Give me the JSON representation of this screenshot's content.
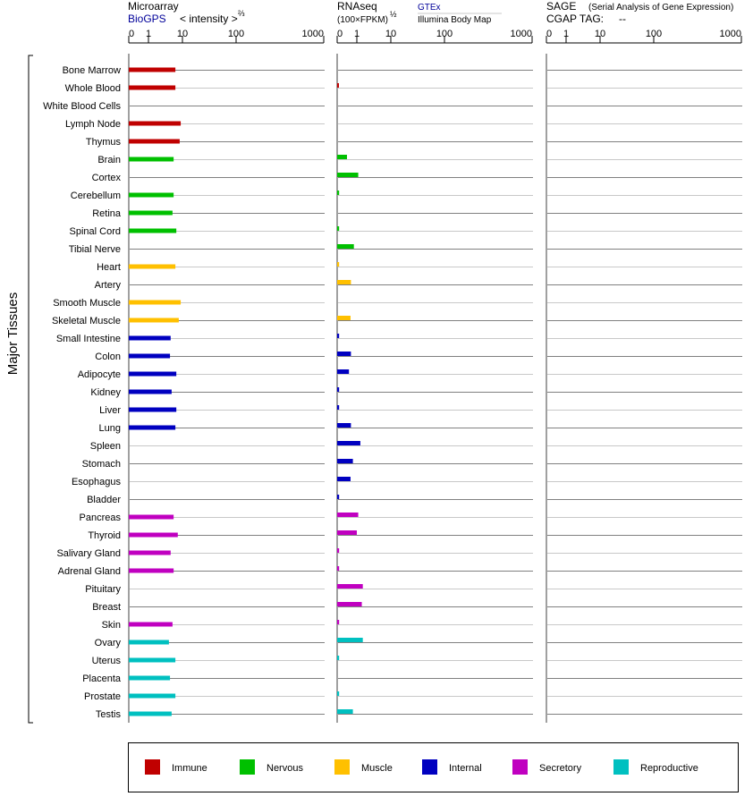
{
  "chart_data": {
    "type": "bar",
    "orientation": "horizontal",
    "y_group_label": "Major Tissues",
    "categories": [
      "Bone Marrow",
      "Whole Blood",
      "White Blood Cells",
      "Lymph Node",
      "Thymus",
      "Brain",
      "Cortex",
      "Cerebellum",
      "Retina",
      "Spinal Cord",
      "Tibial Nerve",
      "Heart",
      "Artery",
      "Smooth Muscle",
      "Skeletal Muscle",
      "Small Intestine",
      "Colon",
      "Adipocyte",
      "Kidney",
      "Liver",
      "Lung",
      "Spleen",
      "Stomach",
      "Esophagus",
      "Bladder",
      "Pancreas",
      "Thyroid",
      "Salivary Gland",
      "Adrenal Gland",
      "Pituitary",
      "Breast",
      "Skin",
      "Ovary",
      "Uterus",
      "Placenta",
      "Prostate",
      "Testis"
    ],
    "category_groups": [
      "Immune",
      "Immune",
      "Immune",
      "Immune",
      "Immune",
      "Nervous",
      "Nervous",
      "Nervous",
      "Nervous",
      "Nervous",
      "Nervous",
      "Muscle",
      "Muscle",
      "Muscle",
      "Muscle",
      "Internal",
      "Internal",
      "Internal",
      "Internal",
      "Internal",
      "Internal",
      "Internal",
      "Internal",
      "Internal",
      "Internal",
      "Secretory",
      "Secretory",
      "Secretory",
      "Secretory",
      "Secretory",
      "Secretory",
      "Secretory",
      "Reproductive",
      "Reproductive",
      "Reproductive",
      "Reproductive",
      "Reproductive"
    ],
    "group_colors": {
      "Immune": "#c00000",
      "Nervous": "#00c000",
      "Muscle": "#ffc000",
      "Internal": "#0000c0",
      "Secretory": "#c000c0",
      "Reproductive": "#00c0c0"
    },
    "axis_ticks": [
      "0",
      "1",
      "10",
      "100",
      "1000"
    ],
    "axis_tick_values": [
      0,
      1,
      10,
      100,
      1000
    ],
    "xlim": [
      0,
      1000
    ],
    "grid": true,
    "legend_placement": "bottom",
    "panels": [
      {
        "name": "Microarray",
        "source": "BioGPS",
        "unit_label": "< intensity >",
        "unit_exponent": "⅔",
        "values": [
          6.2,
          6.2,
          null,
          8.9,
          8.3,
          5.5,
          null,
          5.5,
          5.1,
          6.6,
          null,
          6.2,
          null,
          8.9,
          7.8,
          4.5,
          4.3,
          6.6,
          4.8,
          6.6,
          6.2,
          null,
          null,
          null,
          null,
          5.5,
          7.3,
          4.5,
          5.5,
          null,
          null,
          5.1,
          4.0,
          6.2,
          4.3,
          6.2,
          4.8
        ]
      },
      {
        "name": "RNAseq",
        "unit_label": "(100×FPKM)",
        "unit_exponent": "½",
        "source": "GTEx",
        "source2": "Illumina Body Map",
        "values": [
          null,
          0.08,
          null,
          null,
          null,
          0.5,
          1.1,
          0.1,
          null,
          0.1,
          0.85,
          0.1,
          0.7,
          null,
          0.68,
          0.1,
          0.7,
          0.6,
          0.1,
          0.1,
          0.7,
          1.27,
          0.8,
          0.68,
          0.1,
          1.1,
          1.0,
          0.1,
          0.1,
          1.5,
          1.4,
          0.1,
          1.5,
          0.1,
          null,
          0.1,
          0.8
        ]
      },
      {
        "name": "SAGE",
        "subtitle": "(Serial Analysis of Gene Expression)",
        "tag_label": "CGAP TAG:",
        "tag_value": "--",
        "values": [
          null,
          null,
          null,
          null,
          null,
          null,
          null,
          null,
          null,
          null,
          null,
          null,
          null,
          null,
          null,
          null,
          null,
          null,
          null,
          null,
          null,
          null,
          null,
          null,
          null,
          null,
          null,
          null,
          null,
          null,
          null,
          null,
          null,
          null,
          null,
          null,
          null
        ]
      }
    ],
    "legend": [
      "Immune",
      "Nervous",
      "Muscle",
      "Internal",
      "Secretory",
      "Reproductive"
    ]
  },
  "colors": {
    "link": "#000099",
    "grid_dark": "#808080",
    "grid_light": "#c8c8c8"
  }
}
